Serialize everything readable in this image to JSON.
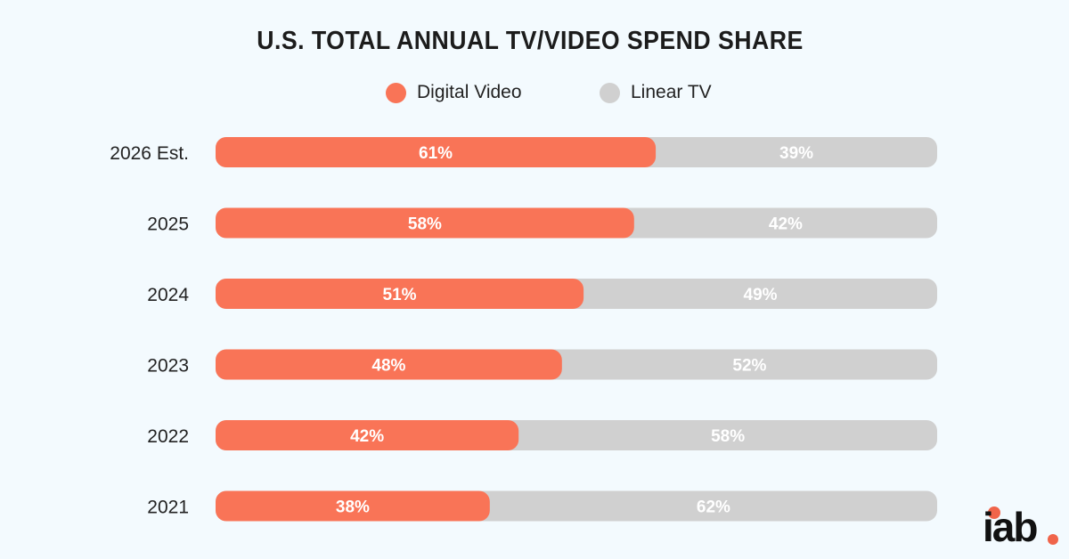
{
  "chart_data": {
    "type": "bar",
    "orientation": "horizontal",
    "stacked": true,
    "percent": true,
    "title": "U.S. TOTAL ANNUAL TV/VIDEO SPEND SHARE",
    "categories": [
      "2026 Est.",
      "2025",
      "2024",
      "2023",
      "2022",
      "2021"
    ],
    "series": [
      {
        "name": "Digital Video",
        "color": "#f97457",
        "values": [
          61,
          58,
          51,
          48,
          42,
          38
        ],
        "labels": [
          "61%",
          "58%",
          "51%",
          "48%",
          "42%",
          "38%"
        ]
      },
      {
        "name": "Linear TV",
        "color": "#d0d0d0",
        "values": [
          39,
          42,
          49,
          52,
          58,
          62
        ],
        "labels": [
          "39%",
          "42%",
          "49%",
          "52%",
          "58%",
          "62%"
        ]
      }
    ],
    "xlim": [
      0,
      100
    ],
    "grid": false,
    "legend_position": "top-center"
  },
  "logo": {
    "text": "iab."
  }
}
